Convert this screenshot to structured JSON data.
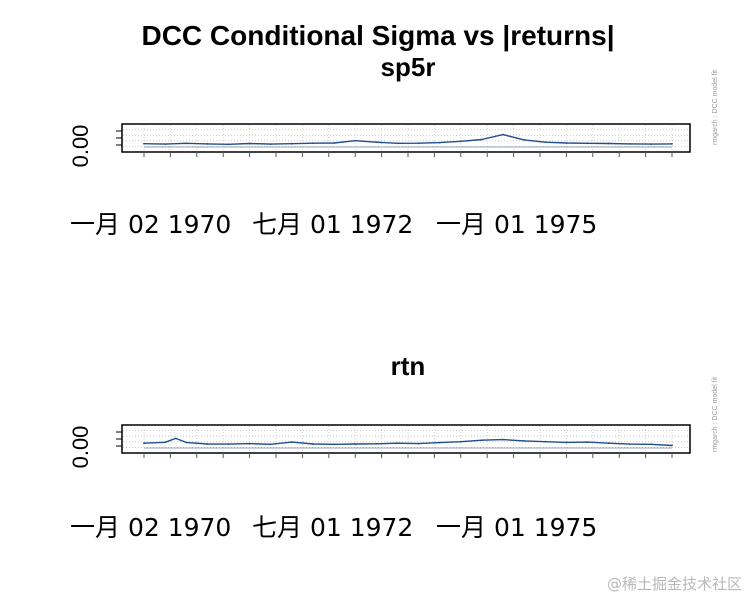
{
  "watermark": "@稀土掘金技术社区",
  "chart_data": {
    "title": "DCC Conditional Sigma vs |returns|",
    "side_note": "rmgarch : DCC model fit",
    "panels": [
      {
        "type": "line",
        "title": "sp5r",
        "ytick": "0.00",
        "x_ticks": [
          "一月 02 1970",
          "七月 01 1972",
          "一月 01 1975"
        ],
        "x_range": [
          0,
          100
        ],
        "y_range": [
          0,
          10
        ],
        "grid": true,
        "series": [
          {
            "color": "#1f4e8c",
            "x": [
              0,
              4,
              8,
              12,
              16,
              20,
              24,
              28,
              32,
              36,
              40,
              44,
              48,
              52,
              56,
              60,
              64,
              68,
              72,
              76,
              80,
              84,
              88,
              92,
              96,
              100
            ],
            "values": [
              1.2,
              1.0,
              1.4,
              1.1,
              0.9,
              1.3,
              1.0,
              1.2,
              1.5,
              1.6,
              2.8,
              2.0,
              1.4,
              1.5,
              1.8,
              2.5,
              3.4,
              6.0,
              3.2,
              2.0,
              1.6,
              1.4,
              1.3,
              1.1,
              1.0,
              1.1
            ]
          }
        ]
      },
      {
        "type": "line",
        "title": "rtn",
        "ytick": "0.00",
        "x_ticks": [
          "一月 02 1970",
          "七月 01 1972",
          "一月 01 1975"
        ],
        "x_range": [
          0,
          100
        ],
        "y_range": [
          0,
          10
        ],
        "grid": true,
        "series": [
          {
            "color": "#1f4e8c",
            "x": [
              0,
              4,
              6,
              8,
              12,
              16,
              20,
              24,
              28,
              32,
              36,
              40,
              44,
              48,
              52,
              56,
              60,
              64,
              68,
              72,
              76,
              80,
              84,
              88,
              92,
              96,
              100
            ],
            "values": [
              2.0,
              2.5,
              4.5,
              2.4,
              1.6,
              1.5,
              1.8,
              1.4,
              2.6,
              1.6,
              1.4,
              1.6,
              1.7,
              2.0,
              1.8,
              2.3,
              2.8,
              3.6,
              3.9,
              3.2,
              2.8,
              2.4,
              2.6,
              2.0,
              1.5,
              1.4,
              0.8
            ]
          }
        ]
      }
    ]
  }
}
